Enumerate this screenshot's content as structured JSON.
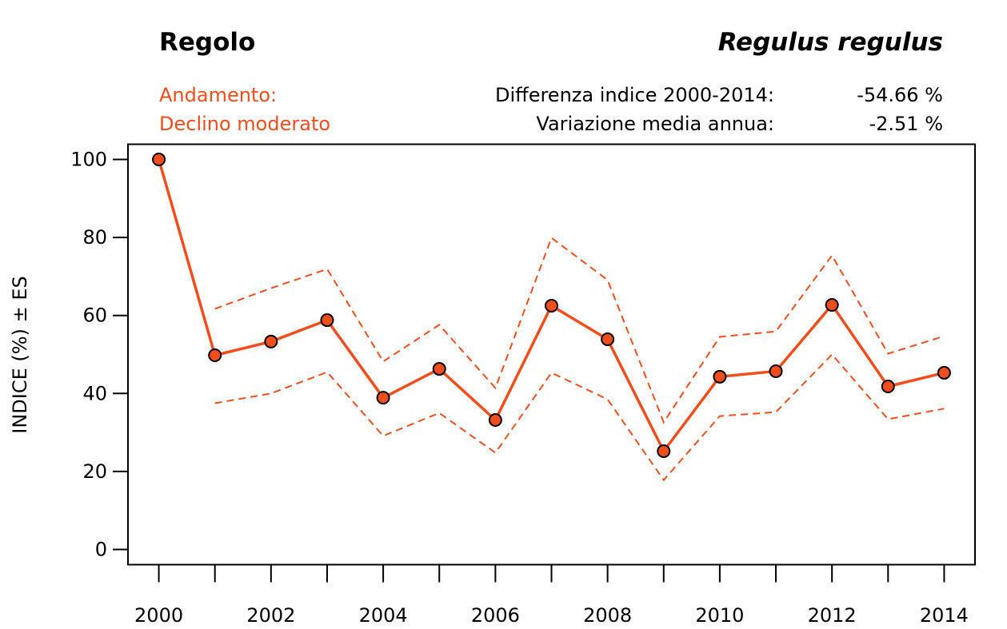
{
  "header": {
    "common_name": "Regolo",
    "scientific_name": "Regulus regulus",
    "trend_label": "Andamento:",
    "trend_value": "Declino moderato",
    "stats": [
      {
        "label": "Differenza indice 2000-2014:",
        "value": "-54.66 %"
      },
      {
        "label": "Variazione media annua:",
        "value": "-2.51 %"
      }
    ]
  },
  "colors": {
    "accent": "#f04e1c",
    "text": "#000000",
    "axis": "#000000"
  },
  "chart_data": {
    "type": "line",
    "title": "Regolo",
    "subtitle": "Regulus regulus",
    "xlabel": "",
    "ylabel": "INDICE (%) ± ES",
    "x": [
      2000,
      2001,
      2002,
      2003,
      2004,
      2005,
      2006,
      2007,
      2008,
      2009,
      2010,
      2011,
      2012,
      2013,
      2014
    ],
    "xlim": [
      1999.45,
      2014.55
    ],
    "ylim": [
      -3.9,
      103.9
    ],
    "x_ticks": [
      2000,
      2001,
      2002,
      2003,
      2004,
      2005,
      2006,
      2007,
      2008,
      2009,
      2010,
      2011,
      2012,
      2013,
      2014
    ],
    "x_tick_labels": [
      "2000",
      "",
      "2002",
      "",
      "2004",
      "",
      "2006",
      "",
      "2008",
      "",
      "2010",
      "",
      "2012",
      "",
      "2014"
    ],
    "y_ticks": [
      0,
      20,
      40,
      60,
      80,
      100
    ],
    "y_tick_labels": [
      "0",
      "20",
      "40",
      "60",
      "80",
      "100"
    ],
    "grid": false,
    "legend": "none",
    "series": [
      {
        "name": "Indice",
        "style": "solid-with-markers",
        "values": [
          100,
          49.8,
          53.3,
          58.8,
          38.9,
          46.3,
          33.2,
          62.5,
          53.9,
          25.2,
          44.3,
          45.7,
          62.7,
          41.8,
          45.3
        ]
      },
      {
        "name": "Indice + ES",
        "style": "dashed",
        "values": [
          null,
          61.7,
          67.0,
          71.9,
          48.2,
          57.6,
          41.4,
          79.9,
          69.1,
          32.6,
          54.5,
          55.9,
          75.4,
          50.2,
          54.7
        ]
      },
      {
        "name": "Indice - ES",
        "style": "dashed",
        "values": [
          null,
          37.5,
          40.0,
          45.5,
          29.1,
          35.0,
          24.8,
          45.3,
          38.5,
          17.8,
          34.2,
          35.2,
          50.0,
          33.4,
          36.1
        ]
      }
    ]
  }
}
